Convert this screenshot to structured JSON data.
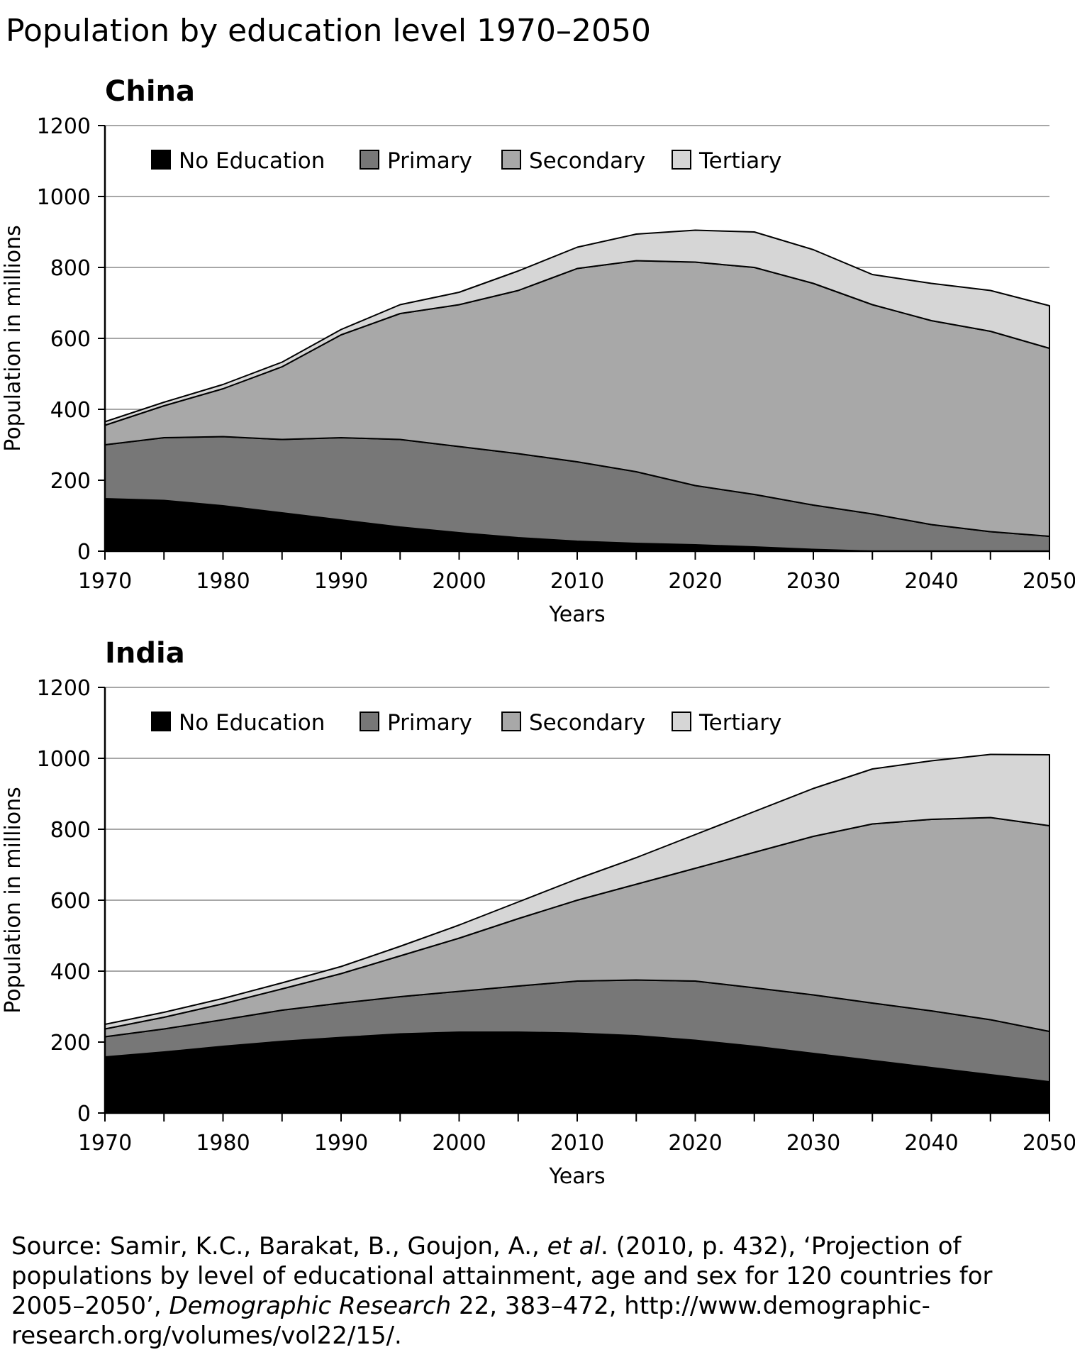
{
  "figure_title": "Population by education level 1970–2050",
  "colors": {
    "No Education": "#000000",
    "Primary": "#777777",
    "Secondary": "#a8a8a8",
    "Tertiary": "#d6d6d6",
    "gridline": "#8a8a8a",
    "outline": "#000000"
  },
  "chart_data": [
    {
      "type": "area",
      "stacked": true,
      "title": "China",
      "xlabel": "Years",
      "ylabel": "Population in millions",
      "xlim": [
        1970,
        2050
      ],
      "ylim": [
        0,
        1200
      ],
      "xticks": [
        1970,
        1980,
        1990,
        2000,
        2010,
        2020,
        2030,
        2040,
        2050
      ],
      "yticks": [
        0,
        200,
        400,
        600,
        800,
        1000,
        1200
      ],
      "grid": "horizontal",
      "legend": "top-left",
      "x": [
        1970,
        1975,
        1980,
        1985,
        1990,
        1995,
        2000,
        2005,
        2010,
        2015,
        2020,
        2025,
        2030,
        2035,
        2040,
        2045,
        2050
      ],
      "series": [
        {
          "name": "No Education",
          "values": [
            148,
            143,
            128,
            108,
            88,
            68,
            52,
            38,
            28,
            22,
            18,
            12,
            5,
            0,
            0,
            0,
            0
          ]
        },
        {
          "name": "Primary",
          "values": [
            152,
            177,
            195,
            207,
            232,
            247,
            243,
            237,
            224,
            202,
            167,
            148,
            125,
            105,
            75,
            55,
            42
          ]
        },
        {
          "name": "Secondary",
          "values": [
            55,
            90,
            135,
            205,
            290,
            355,
            400,
            460,
            545,
            595,
            630,
            640,
            625,
            590,
            575,
            565,
            530
          ]
        },
        {
          "name": "Tertiary",
          "values": [
            10,
            10,
            12,
            13,
            15,
            25,
            35,
            55,
            60,
            75,
            90,
            100,
            95,
            85,
            105,
            115,
            120
          ]
        }
      ]
    },
    {
      "type": "area",
      "stacked": true,
      "title": "India",
      "xlabel": "Years",
      "ylabel": "Population in millions",
      "xlim": [
        1970,
        2050
      ],
      "ylim": [
        0,
        1200
      ],
      "xticks": [
        1970,
        1980,
        1990,
        2000,
        2010,
        2020,
        2030,
        2040,
        2050
      ],
      "yticks": [
        0,
        200,
        400,
        600,
        800,
        1000,
        1200
      ],
      "grid": "horizontal",
      "legend": "top-left",
      "x": [
        1970,
        1975,
        1980,
        1985,
        1990,
        1995,
        2000,
        2005,
        2010,
        2015,
        2020,
        2025,
        2030,
        2035,
        2040,
        2045,
        2050
      ],
      "series": [
        {
          "name": "No Education",
          "values": [
            158,
            172,
            188,
            202,
            213,
            223,
            228,
            228,
            225,
            218,
            205,
            188,
            168,
            148,
            128,
            108,
            88
          ]
        },
        {
          "name": "Primary",
          "values": [
            57,
            65,
            75,
            88,
            97,
            105,
            115,
            130,
            147,
            157,
            167,
            165,
            165,
            162,
            160,
            155,
            142
          ]
        },
        {
          "name": "Secondary",
          "values": [
            22,
            33,
            45,
            60,
            83,
            115,
            150,
            190,
            228,
            270,
            318,
            382,
            447,
            505,
            540,
            570,
            580
          ]
        },
        {
          "name": "Tertiary",
          "values": [
            13,
            14,
            15,
            17,
            20,
            27,
            37,
            47,
            60,
            75,
            95,
            115,
            135,
            155,
            165,
            178,
            200
          ]
        }
      ]
    }
  ],
  "source": {
    "prefix": "Source: Samir, K.C., Barakat, B., Goujon, A., ",
    "et_al": "et al",
    "middle": ". (2010, p. 432), ‘Projection of populations by level of educational attainment, age and sex for 120 countries for 2005–2050’, ",
    "journal": "Demographic Research",
    "suffix": " 22, 383–472, http://www.demographic-research.org/volumes/vol22/15/."
  }
}
